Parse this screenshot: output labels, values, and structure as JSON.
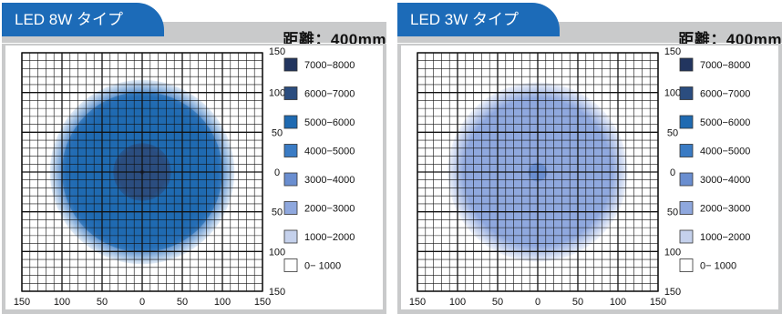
{
  "chart_data": [
    {
      "type": "heatmap",
      "title": "LED 8W タイプ",
      "distance_label": "距離：400mm",
      "x_ticks": [
        "150",
        "100",
        "50",
        "0",
        "50",
        "100",
        "150"
      ],
      "y_ticks": [
        "150",
        "100",
        "50",
        "0",
        "50",
        "100",
        "150"
      ],
      "xlim": [
        -150,
        150
      ],
      "ylim": [
        -150,
        150
      ],
      "grid": true,
      "legend_position": "right",
      "legend": [
        {
          "label": "7000−8000",
          "color": "#22355f"
        },
        {
          "label": "6000−7000",
          "color": "#2b4d7f"
        },
        {
          "label": "5000−6000",
          "color": "#1f6ab1"
        },
        {
          "label": "4000−5000",
          "color": "#3a7bc4"
        },
        {
          "label": "3000−4000",
          "color": "#6a8ed0"
        },
        {
          "label": "2000−3000",
          "color": "#8fa8de"
        },
        {
          "label": "1000−2000",
          "color": "#c5d1ec"
        },
        {
          "label": "0− 1000",
          "color": "#ffffff"
        }
      ],
      "regions": [
        {
          "range": "4000−5000",
          "radius": 115
        },
        {
          "range": "5000−6000",
          "radius": 100
        },
        {
          "range": "6000−7000",
          "radius": 36
        },
        {
          "range": "7000−8000",
          "radius": 3
        }
      ]
    },
    {
      "type": "heatmap",
      "title": "LED 3W タイプ",
      "distance_label": "距離：400mm",
      "x_ticks": [
        "150",
        "100",
        "50",
        "0",
        "50",
        "100",
        "150"
      ],
      "y_ticks": [
        "150",
        "100",
        "50",
        "0",
        "50",
        "100",
        "150"
      ],
      "xlim": [
        -150,
        150
      ],
      "ylim": [
        -150,
        150
      ],
      "grid": true,
      "legend_position": "right",
      "legend": [
        {
          "label": "7000−8000",
          "color": "#22355f"
        },
        {
          "label": "6000−7000",
          "color": "#2b4d7f"
        },
        {
          "label": "5000−6000",
          "color": "#1f6ab1"
        },
        {
          "label": "4000−5000",
          "color": "#3a7bc4"
        },
        {
          "label": "3000−4000",
          "color": "#6a8ed0"
        },
        {
          "label": "2000−3000",
          "color": "#8fa8de"
        },
        {
          "label": "1000−2000",
          "color": "#c5d1ec"
        },
        {
          "label": "0− 1000",
          "color": "#ffffff"
        }
      ],
      "regions": [
        {
          "range": "2000−3000",
          "radius": 112
        },
        {
          "range": "3000−4000",
          "radius": 12
        }
      ]
    }
  ]
}
